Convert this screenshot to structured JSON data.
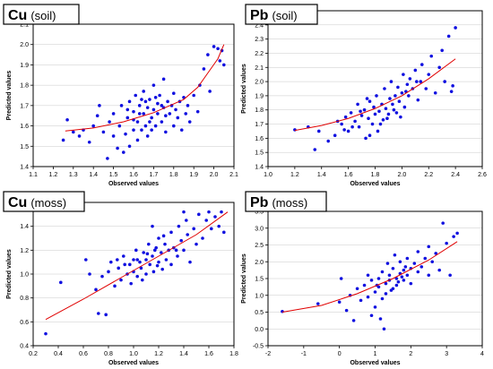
{
  "chart_data": [
    {
      "type": "scatter",
      "title_element": "Cu",
      "title_medium": "(soil)",
      "xlabel": "Observed values",
      "ylabel": "Predicted values",
      "xlim": [
        1.1,
        2.1
      ],
      "ylim": [
        1.4,
        2.1
      ],
      "xticks": [
        1.1,
        1.2,
        1.3,
        1.4,
        1.5,
        1.6,
        1.7,
        1.8,
        1.9,
        2.0,
        2.1
      ],
      "yticks": [
        1.4,
        1.5,
        1.6,
        1.7,
        1.8,
        1.9,
        2.0,
        2.1
      ],
      "xtick_labels": [
        "1.1",
        "1.2",
        "1.3",
        "1.4",
        "1.5",
        "1.6",
        "1.7",
        "1.8",
        "1.9",
        "2.0",
        "2.1"
      ],
      "ytick_labels": [
        "1.4",
        "1.5",
        "1.6",
        "1.7",
        "1.8",
        "1.9",
        "2.0",
        "2.1"
      ],
      "grid": "horizontal",
      "fit_line": [
        [
          1.26,
          1.575
        ],
        [
          1.4,
          1.59
        ],
        [
          1.55,
          1.62
        ],
        [
          1.7,
          1.665
        ],
        [
          1.85,
          1.73
        ],
        [
          1.92,
          1.79
        ],
        [
          1.97,
          1.86
        ],
        [
          2.02,
          1.93
        ],
        [
          2.05,
          2.0
        ]
      ],
      "points": [
        [
          1.25,
          1.53
        ],
        [
          1.27,
          1.63
        ],
        [
          1.3,
          1.57
        ],
        [
          1.33,
          1.55
        ],
        [
          1.35,
          1.58
        ],
        [
          1.38,
          1.52
        ],
        [
          1.4,
          1.6
        ],
        [
          1.42,
          1.65
        ],
        [
          1.43,
          1.7
        ],
        [
          1.45,
          1.57
        ],
        [
          1.47,
          1.44
        ],
        [
          1.48,
          1.62
        ],
        [
          1.5,
          1.55
        ],
        [
          1.5,
          1.66
        ],
        [
          1.52,
          1.49
        ],
        [
          1.53,
          1.6
        ],
        [
          1.54,
          1.7
        ],
        [
          1.55,
          1.47
        ],
        [
          1.56,
          1.56
        ],
        [
          1.57,
          1.64
        ],
        [
          1.58,
          1.5
        ],
        [
          1.58,
          1.72
        ],
        [
          1.6,
          1.58
        ],
        [
          1.6,
          1.67
        ],
        [
          1.61,
          1.75
        ],
        [
          1.62,
          1.53
        ],
        [
          1.62,
          1.62
        ],
        [
          1.63,
          1.7
        ],
        [
          1.64,
          1.58
        ],
        [
          1.65,
          1.66
        ],
        [
          1.65,
          1.77
        ],
        [
          1.66,
          1.6
        ],
        [
          1.67,
          1.69
        ],
        [
          1.67,
          1.55
        ],
        [
          1.68,
          1.73
        ],
        [
          1.69,
          1.64
        ],
        [
          1.7,
          1.68
        ],
        [
          1.7,
          1.8
        ],
        [
          1.71,
          1.6
        ],
        [
          1.72,
          1.71
        ],
        [
          1.72,
          1.66
        ],
        [
          1.73,
          1.75
        ],
        [
          1.74,
          1.62
        ],
        [
          1.75,
          1.69
        ],
        [
          1.75,
          1.83
        ],
        [
          1.76,
          1.57
        ],
        [
          1.77,
          1.72
        ],
        [
          1.78,
          1.66
        ],
        [
          1.79,
          1.7
        ],
        [
          1.8,
          1.6
        ],
        [
          1.8,
          1.76
        ],
        [
          1.81,
          1.68
        ],
        [
          1.82,
          1.64
        ],
        [
          1.83,
          1.72
        ],
        [
          1.84,
          1.58
        ],
        [
          1.85,
          1.74
        ],
        [
          1.86,
          1.66
        ],
        [
          1.87,
          1.7
        ],
        [
          1.88,
          1.62
        ],
        [
          1.9,
          1.75
        ],
        [
          1.92,
          1.67
        ],
        [
          1.93,
          1.8
        ],
        [
          1.95,
          1.88
        ],
        [
          1.97,
          1.95
        ],
        [
          1.98,
          1.77
        ],
        [
          2.0,
          1.99
        ],
        [
          2.02,
          1.98
        ],
        [
          2.03,
          1.92
        ],
        [
          2.04,
          1.97
        ],
        [
          2.05,
          1.9
        ],
        [
          1.57,
          1.68
        ],
        [
          1.63,
          1.66
        ],
        [
          1.68,
          1.62
        ],
        [
          1.71,
          1.74
        ],
        [
          1.74,
          1.7
        ],
        [
          1.66,
          1.72
        ],
        [
          1.6,
          1.63
        ],
        [
          1.76,
          1.65
        ],
        [
          1.69,
          1.58
        ],
        [
          1.64,
          1.73
        ]
      ]
    },
    {
      "type": "scatter",
      "title_element": "Pb",
      "title_medium": "(soil)",
      "xlabel": "Observed values",
      "ylabel": "Predicted values",
      "xlim": [
        1.0,
        2.6
      ],
      "ylim": [
        1.4,
        2.5
      ],
      "xticks": [
        1.0,
        1.2,
        1.4,
        1.6,
        1.8,
        2.0,
        2.2,
        2.4,
        2.6
      ],
      "yticks": [
        1.4,
        1.5,
        1.6,
        1.7,
        1.8,
        1.9,
        2.0,
        2.1,
        2.2,
        2.3,
        2.4,
        2.5
      ],
      "xtick_labels": [
        "1.0",
        "1.2",
        "1.4",
        "1.6",
        "1.8",
        "2.0",
        "2.2",
        "2.4",
        "2.6"
      ],
      "ytick_labels": [
        "1.4",
        "1.5",
        "1.6",
        "1.7",
        "1.8",
        "1.9",
        "2.0",
        "2.1",
        "2.2",
        "2.3",
        "2.4",
        "2.5"
      ],
      "grid": "horizontal",
      "fit_line": [
        [
          1.2,
          1.655
        ],
        [
          1.4,
          1.69
        ],
        [
          1.6,
          1.74
        ],
        [
          1.8,
          1.81
        ],
        [
          2.0,
          1.9
        ],
        [
          2.2,
          2.02
        ],
        [
          2.4,
          2.16
        ]
      ],
      "points": [
        [
          1.2,
          1.66
        ],
        [
          1.3,
          1.68
        ],
        [
          1.38,
          1.65
        ],
        [
          1.45,
          1.58
        ],
        [
          1.5,
          1.62
        ],
        [
          1.52,
          1.72
        ],
        [
          1.55,
          1.7
        ],
        [
          1.58,
          1.75
        ],
        [
          1.6,
          1.65
        ],
        [
          1.62,
          1.78
        ],
        [
          1.65,
          1.72
        ],
        [
          1.67,
          1.84
        ],
        [
          1.68,
          1.68
        ],
        [
          1.7,
          1.76
        ],
        [
          1.72,
          1.8
        ],
        [
          1.73,
          1.6
        ],
        [
          1.75,
          1.74
        ],
        [
          1.76,
          1.86
        ],
        [
          1.78,
          1.7
        ],
        [
          1.79,
          1.82
        ],
        [
          1.8,
          1.77
        ],
        [
          1.81,
          1.9
        ],
        [
          1.82,
          1.65
        ],
        [
          1.83,
          1.79
        ],
        [
          1.85,
          1.84
        ],
        [
          1.86,
          1.73
        ],
        [
          1.87,
          1.95
        ],
        [
          1.88,
          1.81
        ],
        [
          1.9,
          1.77
        ],
        [
          1.91,
          1.88
        ],
        [
          1.92,
          2.0
        ],
        [
          1.93,
          1.84
        ],
        [
          1.95,
          1.9
        ],
        [
          1.96,
          1.78
        ],
        [
          1.97,
          1.96
        ],
        [
          1.98,
          1.86
        ],
        [
          2.0,
          1.92
        ],
        [
          2.01,
          2.05
        ],
        [
          2.02,
          1.82
        ],
        [
          2.04,
          1.98
        ],
        [
          2.05,
          1.9
        ],
        [
          2.06,
          2.02
        ],
        [
          2.08,
          1.95
        ],
        [
          2.1,
          2.08
        ],
        [
          2.12,
          1.87
        ],
        [
          2.14,
          2.0
        ],
        [
          2.15,
          2.12
        ],
        [
          2.18,
          1.95
        ],
        [
          2.2,
          2.05
        ],
        [
          2.22,
          2.18
        ],
        [
          2.25,
          1.92
        ],
        [
          2.28,
          2.1
        ],
        [
          2.3,
          2.22
        ],
        [
          2.32,
          2.0
        ],
        [
          2.35,
          2.32
        ],
        [
          2.37,
          1.93
        ],
        [
          2.38,
          1.97
        ],
        [
          2.4,
          2.38
        ],
        [
          1.35,
          1.52
        ],
        [
          1.76,
          1.62
        ],
        [
          1.84,
          1.7
        ],
        [
          1.89,
          1.74
        ],
        [
          1.94,
          1.8
        ],
        [
          1.99,
          1.75
        ],
        [
          2.03,
          1.93
        ],
        [
          1.74,
          1.88
        ],
        [
          1.69,
          1.79
        ],
        [
          1.63,
          1.68
        ],
        [
          2.11,
          2.0
        ],
        [
          1.57,
          1.66
        ]
      ]
    },
    {
      "type": "scatter",
      "title_element": "Cu",
      "title_medium": "(moss)",
      "xlabel": "Observed values",
      "ylabel": "Predicted values",
      "xlim": [
        0.2,
        1.8
      ],
      "ylim": [
        0.4,
        1.6
      ],
      "xticks": [
        0.2,
        0.4,
        0.6,
        0.8,
        1.0,
        1.2,
        1.4,
        1.6,
        1.8
      ],
      "yticks": [
        0.4,
        0.6,
        0.8,
        1.0,
        1.2,
        1.4,
        1.6
      ],
      "xtick_labels": [
        "0.2",
        "0.4",
        "0.6",
        "0.8",
        "1.0",
        "1.2",
        "1.4",
        "1.6",
        "1.8"
      ],
      "ytick_labels": [
        "0.4",
        "0.6",
        "0.8",
        "1.0",
        "1.2",
        "1.4",
        "1.6"
      ],
      "grid": "horizontal",
      "fit_line": [
        [
          0.3,
          0.62
        ],
        [
          0.6,
          0.79
        ],
        [
          0.9,
          0.97
        ],
        [
          1.2,
          1.15
        ],
        [
          1.5,
          1.33
        ],
        [
          1.75,
          1.52
        ]
      ],
      "points": [
        [
          0.3,
          0.5
        ],
        [
          0.42,
          0.93
        ],
        [
          0.62,
          1.12
        ],
        [
          0.65,
          1.0
        ],
        [
          0.7,
          0.87
        ],
        [
          0.72,
          0.67
        ],
        [
          0.78,
          0.66
        ],
        [
          0.8,
          1.02
        ],
        [
          0.82,
          1.1
        ],
        [
          0.85,
          0.9
        ],
        [
          0.88,
          1.05
        ],
        [
          0.9,
          0.95
        ],
        [
          0.92,
          1.15
        ],
        [
          0.95,
          1.0
        ],
        [
          0.97,
          1.08
        ],
        [
          0.98,
          0.92
        ],
        [
          1.0,
          1.12
        ],
        [
          1.0,
          1.02
        ],
        [
          1.02,
          1.2
        ],
        [
          1.03,
          0.98
        ],
        [
          1.05,
          1.1
        ],
        [
          1.06,
          1.05
        ],
        [
          1.08,
          1.18
        ],
        [
          1.1,
          1.0
        ],
        [
          1.1,
          1.12
        ],
        [
          1.12,
          1.25
        ],
        [
          1.13,
          1.08
        ],
        [
          1.15,
          1.15
        ],
        [
          1.16,
          1.02
        ],
        [
          1.18,
          1.22
        ],
        [
          1.2,
          1.1
        ],
        [
          1.2,
          1.3
        ],
        [
          1.22,
          1.18
        ],
        [
          1.23,
          1.04
        ],
        [
          1.25,
          1.25
        ],
        [
          1.26,
          1.12
        ],
        [
          1.28,
          1.2
        ],
        [
          1.3,
          1.35
        ],
        [
          1.3,
          1.08
        ],
        [
          1.32,
          1.22
        ],
        [
          1.35,
          1.15
        ],
        [
          1.36,
          1.4
        ],
        [
          1.38,
          1.28
        ],
        [
          1.4,
          1.2
        ],
        [
          1.42,
          1.45
        ],
        [
          1.43,
          1.33
        ],
        [
          1.45,
          1.1
        ],
        [
          1.48,
          1.38
        ],
        [
          1.5,
          1.25
        ],
        [
          1.52,
          1.5
        ],
        [
          1.55,
          1.3
        ],
        [
          1.58,
          1.45
        ],
        [
          1.6,
          1.52
        ],
        [
          1.62,
          1.38
        ],
        [
          1.65,
          1.48
        ],
        [
          1.68,
          1.4
        ],
        [
          1.7,
          1.52
        ],
        [
          1.72,
          1.35
        ],
        [
          1.4,
          1.52
        ],
        [
          1.15,
          1.4
        ],
        [
          0.93,
          1.08
        ],
        [
          1.07,
          0.95
        ],
        [
          1.11,
          1.17
        ],
        [
          1.19,
          1.07
        ],
        [
          1.24,
          1.32
        ],
        [
          0.87,
          1.12
        ],
        [
          1.34,
          1.2
        ],
        [
          1.03,
          1.12
        ],
        [
          1.17,
          1.2
        ],
        [
          0.75,
          0.98
        ]
      ]
    },
    {
      "type": "scatter",
      "title_element": "Pb",
      "title_medium": "(moss)",
      "xlabel": "Observed values",
      "ylabel": "Predicted values",
      "xlim": [
        -2,
        4
      ],
      "ylim": [
        -0.5,
        3.5
      ],
      "xticks": [
        -2,
        -1,
        0,
        1,
        2,
        3,
        4
      ],
      "yticks": [
        -0.5,
        0.0,
        0.5,
        1.0,
        1.5,
        2.0,
        2.5,
        3.0,
        3.5
      ],
      "xtick_labels": [
        "-2",
        "-1",
        "0",
        "1",
        "2",
        "3",
        "4"
      ],
      "ytick_labels": [
        "-0.5",
        "0.0",
        "0.5",
        "1.0",
        "1.5",
        "2.0",
        "2.5",
        "3.0",
        "3.5"
      ],
      "grid": "horizontal",
      "fit_line": [
        [
          -1.6,
          0.5
        ],
        [
          -0.5,
          0.7
        ],
        [
          0.5,
          1.05
        ],
        [
          1.5,
          1.5
        ],
        [
          2.5,
          2.05
        ],
        [
          3.3,
          2.6
        ]
      ],
      "points": [
        [
          -1.6,
          0.52
        ],
        [
          -0.6,
          0.75
        ],
        [
          0.0,
          0.8
        ],
        [
          0.2,
          0.55
        ],
        [
          0.3,
          1.0
        ],
        [
          0.4,
          0.25
        ],
        [
          0.5,
          1.2
        ],
        [
          0.6,
          0.85
        ],
        [
          0.7,
          1.3
        ],
        [
          0.8,
          0.95
        ],
        [
          0.9,
          0.4
        ],
        [
          0.9,
          1.45
        ],
        [
          1.0,
          1.1
        ],
        [
          1.0,
          0.65
        ],
        [
          1.1,
          1.5
        ],
        [
          1.1,
          1.25
        ],
        [
          1.2,
          0.9
        ],
        [
          1.2,
          1.7
        ],
        [
          1.3,
          1.35
        ],
        [
          1.3,
          1.05
        ],
        [
          1.4,
          1.6
        ],
        [
          1.4,
          1.45
        ],
        [
          1.5,
          1.2
        ],
        [
          1.5,
          1.8
        ],
        [
          1.6,
          1.5
        ],
        [
          1.6,
          1.3
        ],
        [
          1.7,
          1.65
        ],
        [
          1.7,
          2.0
        ],
        [
          1.8,
          1.45
        ],
        [
          1.8,
          1.75
        ],
        [
          1.9,
          1.6
        ],
        [
          1.9,
          2.1
        ],
        [
          2.0,
          1.35
        ],
        [
          2.0,
          1.8
        ],
        [
          2.1,
          1.95
        ],
        [
          2.2,
          1.7
        ],
        [
          2.2,
          2.3
        ],
        [
          2.3,
          1.85
        ],
        [
          2.4,
          2.1
        ],
        [
          2.5,
          1.6
        ],
        [
          2.5,
          2.45
        ],
        [
          2.6,
          2.0
        ],
        [
          2.7,
          2.25
        ],
        [
          2.8,
          1.75
        ],
        [
          2.9,
          3.15
        ],
        [
          3.0,
          2.55
        ],
        [
          3.1,
          1.6
        ],
        [
          3.2,
          2.75
        ],
        [
          3.3,
          2.85
        ],
        [
          1.25,
          0.0
        ],
        [
          1.15,
          0.3
        ],
        [
          0.05,
          1.5
        ],
        [
          1.35,
          1.95
        ],
        [
          1.55,
          2.2
        ],
        [
          0.8,
          1.6
        ],
        [
          1.45,
          1.15
        ],
        [
          1.65,
          1.4
        ],
        [
          1.05,
          1.3
        ],
        [
          1.75,
          1.55
        ],
        [
          1.85,
          1.85
        ]
      ]
    }
  ]
}
